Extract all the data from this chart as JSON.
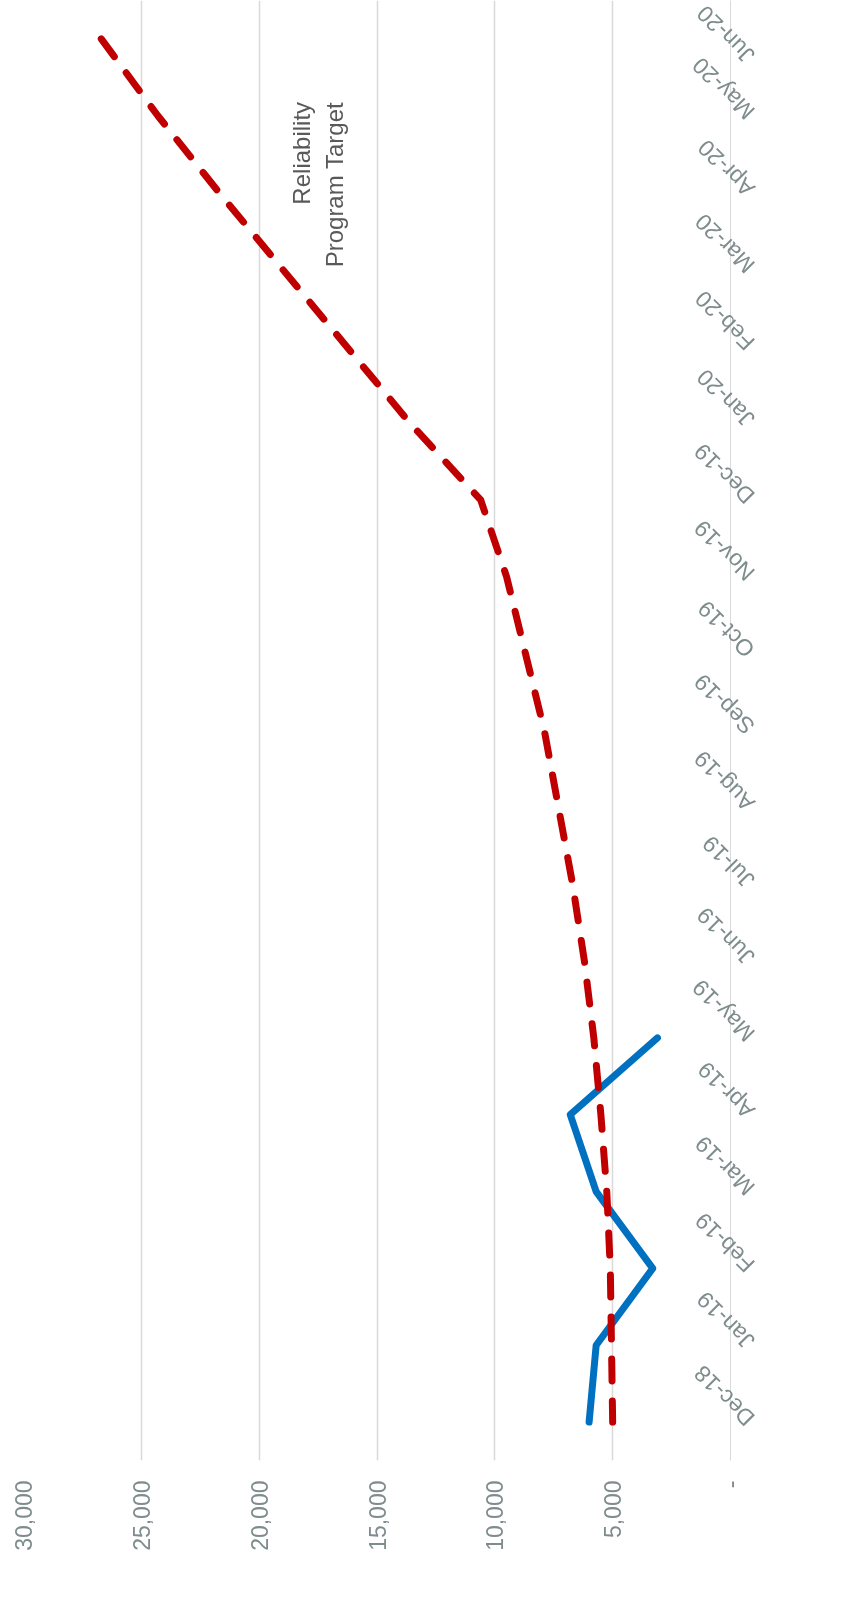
{
  "chart_data": {
    "type": "line",
    "orientation": "horizontal",
    "categories": [
      "Jun-20",
      "May-20",
      "Apr-20",
      "Mar-20",
      "Feb-20",
      "Jan-20",
      "Dec-19",
      "Nov-19",
      "Oct-19",
      "Sep-19",
      "Aug-19",
      "Jul-19",
      "Jun-19",
      "May-19",
      "Apr-19",
      "Mar-19",
      "Feb-19",
      "Jan-19",
      "Dec-18"
    ],
    "xlim": [
      30000,
      0
    ],
    "xticks": [
      {
        "value": 0,
        "label": "-"
      },
      {
        "value": 5000,
        "label": "5,000"
      },
      {
        "value": 10000,
        "label": "10,000"
      },
      {
        "value": 15000,
        "label": "15,000"
      },
      {
        "value": 20000,
        "label": "20,000"
      },
      {
        "value": 25000,
        "label": "25,000"
      },
      {
        "value": 30000,
        "label": "30,000"
      }
    ],
    "grid": "x",
    "series": [
      {
        "color": "#0070c0",
        "line_style": "solid",
        "values": [
          null,
          null,
          null,
          null,
          null,
          null,
          null,
          null,
          null,
          null,
          null,
          null,
          null,
          3100,
          6800,
          5700,
          3300,
          5700,
          6000
        ]
      },
      {
        "name": "Reliability\nProgram Target",
        "color": "#c00000",
        "line_style": "dashed",
        "values": [
          26700,
          24300,
          21700,
          19000,
          16300,
          13600,
          10600,
          9500,
          8700,
          7900,
          7300,
          6700,
          6200,
          5800,
          5500,
          5250,
          5100,
          5050,
          5000
        ]
      }
    ]
  }
}
